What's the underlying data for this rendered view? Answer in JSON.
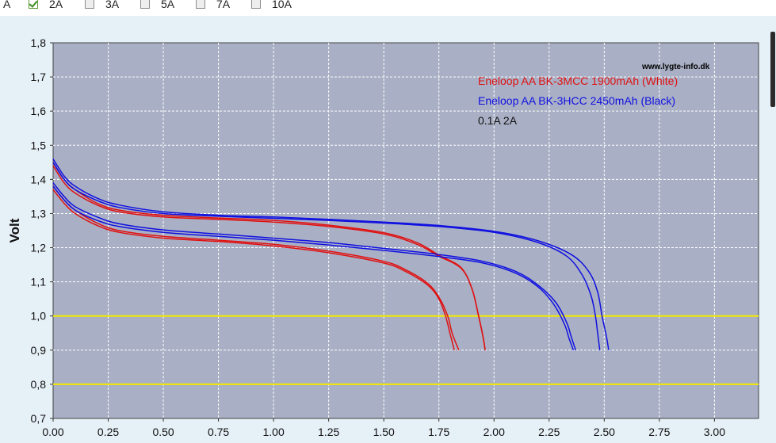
{
  "topbar": {
    "items": [
      {
        "label": "A",
        "checkbox": false,
        "checked": false
      },
      {
        "label": "2A",
        "checkbox": true,
        "checked": true
      },
      {
        "label": "3A",
        "checkbox": true,
        "checked": false
      },
      {
        "label": "5A",
        "checkbox": true,
        "checked": false
      },
      {
        "label": "7A",
        "checkbox": true,
        "checked": false
      },
      {
        "label": "10A",
        "checkbox": true,
        "checked": false
      }
    ]
  },
  "colors": {
    "plot_bg": "#a9b0c5",
    "grid": "#ffffff",
    "red": "#e01010",
    "blue": "#1010e0",
    "yellow": "#f5e800"
  },
  "chart_data": {
    "type": "line",
    "xlabel": "",
    "ylabel": "Volt",
    "xlim": [
      0,
      3.2
    ],
    "ylim": [
      0.7,
      1.8
    ],
    "xticks": [
      "0.00",
      "0.25",
      "0.50",
      "0.75",
      "1.00",
      "1.25",
      "1.50",
      "1.75",
      "2.00",
      "2.25",
      "2.50",
      "2.75",
      "3.00"
    ],
    "yticks": [
      "0,7",
      "0,8",
      "0,9",
      "1,0",
      "1,1",
      "1,2",
      "1,3",
      "1,4",
      "1,5",
      "1,6",
      "1,7",
      "1,8"
    ],
    "reference_lines": [
      1.0,
      0.8
    ],
    "watermark": "www.lygte-info.dk",
    "legend": [
      {
        "text": "Eneloop AA BK-3MCC 1900mAh (White)",
        "color": "#e01010"
      },
      {
        "text": "Eneloop AA BK-3HCC 2450mAh (Black)",
        "color": "#1010e0"
      },
      {
        "text": "0.1A   2A",
        "color": "#111111"
      }
    ],
    "series": [
      {
        "color": "#e01010",
        "x": [
          0,
          0.05,
          0.1,
          0.2,
          0.3,
          0.5,
          0.75,
          1.0,
          1.25,
          1.5,
          1.65,
          1.75,
          1.85,
          1.9,
          1.93,
          1.95,
          1.96
        ],
        "y": [
          1.44,
          1.39,
          1.36,
          1.325,
          1.305,
          1.29,
          1.283,
          1.275,
          1.262,
          1.24,
          1.21,
          1.175,
          1.14,
          1.08,
          1.0,
          0.94,
          0.9
        ]
      },
      {
        "color": "#e01010",
        "x": [
          0,
          0.05,
          0.1,
          0.2,
          0.3,
          0.5,
          0.75,
          1.0,
          1.25,
          1.5,
          1.65,
          1.75,
          1.85,
          1.9,
          1.93,
          1.95,
          1.96
        ],
        "y": [
          1.45,
          1.4,
          1.37,
          1.33,
          1.31,
          1.295,
          1.287,
          1.28,
          1.266,
          1.244,
          1.215,
          1.178,
          1.142,
          1.08,
          1.0,
          0.94,
          0.9
        ]
      },
      {
        "color": "#e01010",
        "x": [
          0,
          0.05,
          0.1,
          0.2,
          0.3,
          0.5,
          0.75,
          1.0,
          1.25,
          1.5,
          1.6,
          1.7,
          1.75,
          1.78,
          1.8,
          1.82
        ],
        "y": [
          1.37,
          1.33,
          1.3,
          1.265,
          1.245,
          1.228,
          1.218,
          1.205,
          1.185,
          1.155,
          1.13,
          1.09,
          1.05,
          1.0,
          0.95,
          0.9
        ]
      },
      {
        "color": "#e01010",
        "x": [
          0,
          0.05,
          0.1,
          0.2,
          0.3,
          0.5,
          0.75,
          1.0,
          1.25,
          1.5,
          1.6,
          1.7,
          1.75,
          1.79,
          1.81,
          1.84
        ],
        "y": [
          1.38,
          1.34,
          1.31,
          1.272,
          1.25,
          1.233,
          1.222,
          1.21,
          1.19,
          1.16,
          1.135,
          1.095,
          1.055,
          1.0,
          0.95,
          0.9
        ]
      },
      {
        "color": "#1010e0",
        "x": [
          0,
          0.05,
          0.1,
          0.2,
          0.3,
          0.5,
          0.75,
          1.0,
          1.25,
          1.5,
          1.75,
          2.0,
          2.2,
          2.35,
          2.43,
          2.47,
          2.49,
          2.51,
          2.52
        ],
        "y": [
          1.46,
          1.41,
          1.38,
          1.345,
          1.325,
          1.305,
          1.295,
          1.29,
          1.283,
          1.275,
          1.265,
          1.248,
          1.22,
          1.18,
          1.13,
          1.07,
          1.0,
          0.94,
          0.9
        ]
      },
      {
        "color": "#1010e0",
        "x": [
          0,
          0.05,
          0.1,
          0.2,
          0.3,
          0.5,
          0.75,
          1.0,
          1.25,
          1.5,
          1.75,
          2.0,
          2.2,
          2.33,
          2.4,
          2.44,
          2.46,
          2.47,
          2.48
        ],
        "y": [
          1.45,
          1.4,
          1.37,
          1.338,
          1.318,
          1.3,
          1.292,
          1.286,
          1.28,
          1.272,
          1.262,
          1.245,
          1.215,
          1.175,
          1.12,
          1.06,
          1.0,
          0.95,
          0.9
        ]
      },
      {
        "color": "#1010e0",
        "x": [
          0,
          0.05,
          0.1,
          0.2,
          0.3,
          0.5,
          0.75,
          1.0,
          1.25,
          1.5,
          1.75,
          1.95,
          2.1,
          2.2,
          2.28,
          2.33,
          2.35,
          2.37
        ],
        "y": [
          1.39,
          1.35,
          1.32,
          1.29,
          1.27,
          1.252,
          1.24,
          1.228,
          1.215,
          1.198,
          1.18,
          1.16,
          1.13,
          1.09,
          1.04,
          0.98,
          0.94,
          0.9
        ]
      },
      {
        "color": "#1010e0",
        "x": [
          0,
          0.05,
          0.1,
          0.2,
          0.3,
          0.5,
          0.75,
          1.0,
          1.25,
          1.5,
          1.75,
          1.95,
          2.1,
          2.2,
          2.27,
          2.32,
          2.34,
          2.36
        ],
        "y": [
          1.38,
          1.34,
          1.31,
          1.28,
          1.262,
          1.245,
          1.233,
          1.222,
          1.208,
          1.192,
          1.174,
          1.155,
          1.125,
          1.085,
          1.035,
          0.975,
          0.935,
          0.9
        ]
      }
    ]
  }
}
